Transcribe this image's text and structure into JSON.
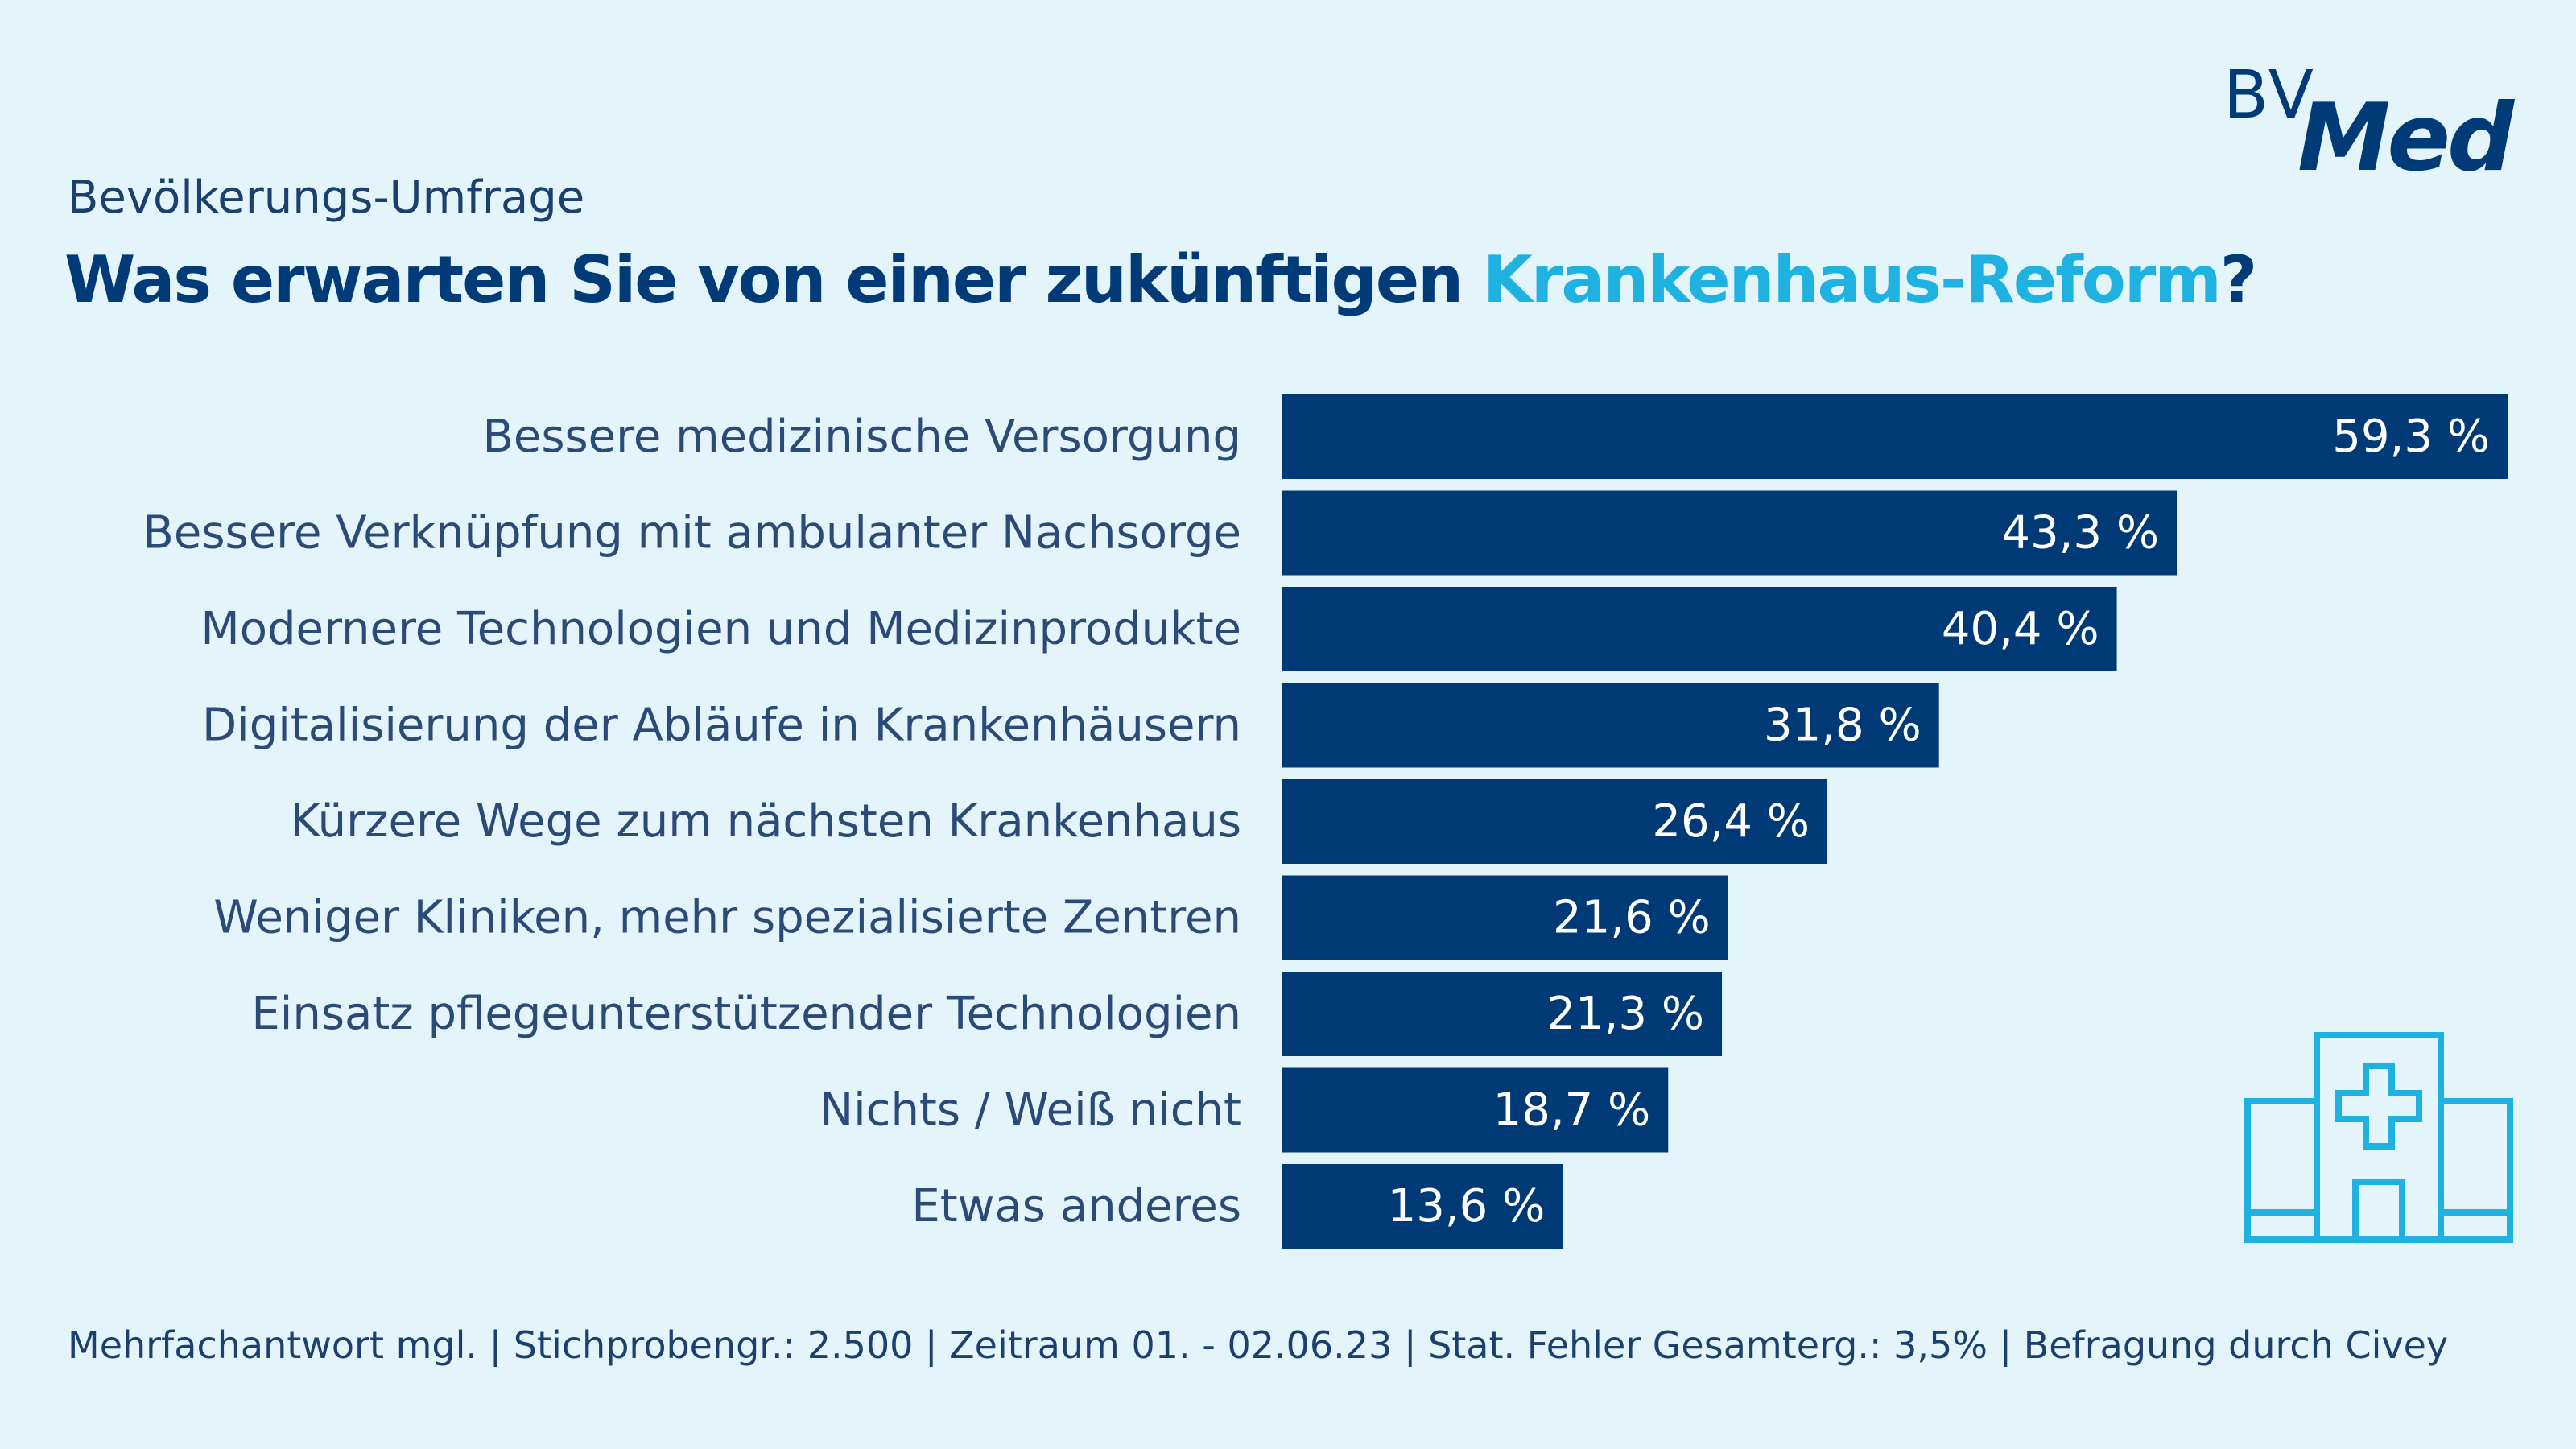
{
  "brand": {
    "logo_part1": "BV",
    "logo_part2": "Med"
  },
  "header": {
    "subtitle": "Bevölkerungs-Umfrage",
    "title_prefix": "Was erwarten Sie von einer zukünftigen ",
    "title_highlight": "Krankenhaus-Reform",
    "title_suffix": "?"
  },
  "chart_data": {
    "type": "bar",
    "orientation": "horizontal",
    "categories": [
      "Bessere medizinische Versorgung",
      "Bessere Verknüpfung mit ambulanter Nachsorge",
      "Modernere Technologien und Medizinprodukte",
      "Digitalisierung der Abläufe in Krankenhäusern",
      "Kürzere Wege zum nächsten Krankenhaus",
      "Weniger Kliniken, mehr spezialisierte Zentren",
      "Einsatz pflegeunterstützender Technologien",
      "Nichts / Weiß nicht",
      "Etwas anderes"
    ],
    "values": [
      59.3,
      43.3,
      40.4,
      31.8,
      26.4,
      21.6,
      21.3,
      18.7,
      13.6
    ],
    "value_labels": [
      "59,3 %",
      "43,3 %",
      "40,4 %",
      "31,8 %",
      "26,4 %",
      "21,6 %",
      "21,3 %",
      "18,7 %",
      "13,6 %"
    ],
    "unit": "%",
    "bar_color": "#003a76",
    "grid": false,
    "legend": "none"
  },
  "footnote": "Mehrfachantwort mgl. | Stichprobengr.: 2.500 | Zeitraum 01. - 02.06.23 | Stat. Fehler Gesamterg.: 3,5% | Befragung durch Civey",
  "colors": {
    "background": "#e4f4fb",
    "primary": "#003b77",
    "accent": "#1fb1e0"
  },
  "icons": {
    "decor": "hospital-icon"
  }
}
